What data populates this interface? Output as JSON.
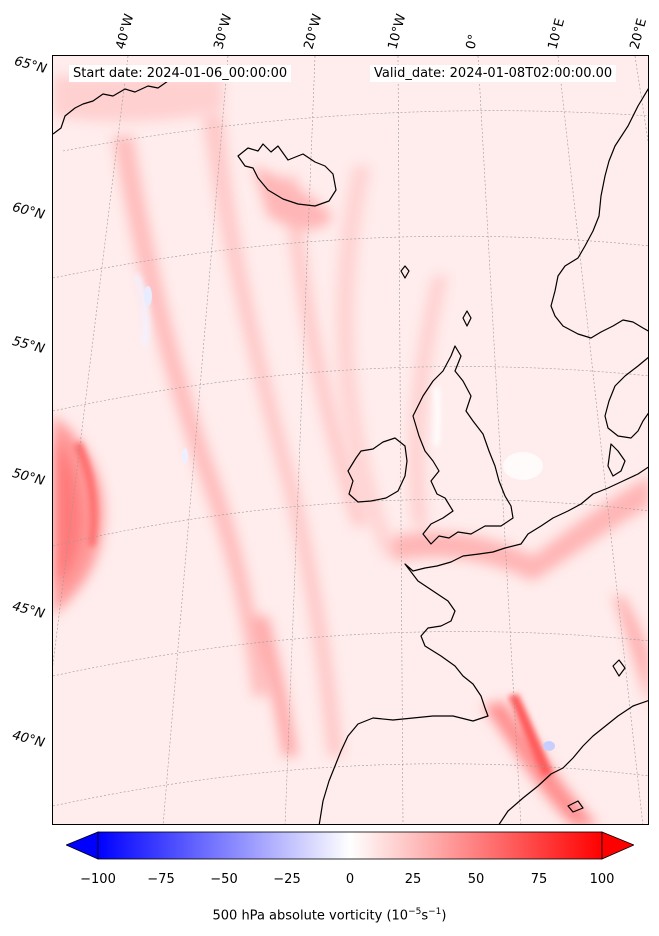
{
  "header": {
    "start_date": "Start date: 2024-01-06_00:00:00",
    "valid_date": "Valid_date: 2024-01-08T02:00:00.00"
  },
  "map": {
    "longitude_labels": [
      "40°W",
      "30°W",
      "20°W",
      "10°W",
      "0°",
      "10°E",
      "20°E"
    ],
    "latitude_labels": [
      "65°N",
      "60°N",
      "55°N",
      "50°N",
      "45°N",
      "40°N"
    ],
    "field_palette": "bwr",
    "coastline_color": "#000000",
    "gridline_color": "#9a9a9a"
  },
  "colorbar": {
    "label": "500 hPa absolute vorticity (10",
    "label_exp1": "−5",
    "label_mid": "s",
    "label_exp2": "−1",
    "label_end": ")",
    "ticks": [
      "−100",
      "−75",
      "−50",
      "−25",
      "0",
      "25",
      "50",
      "75",
      "100"
    ],
    "min_color": "#0000ff",
    "mid_color": "#ffffff",
    "max_color": "#ff0000",
    "extend": "both"
  }
}
